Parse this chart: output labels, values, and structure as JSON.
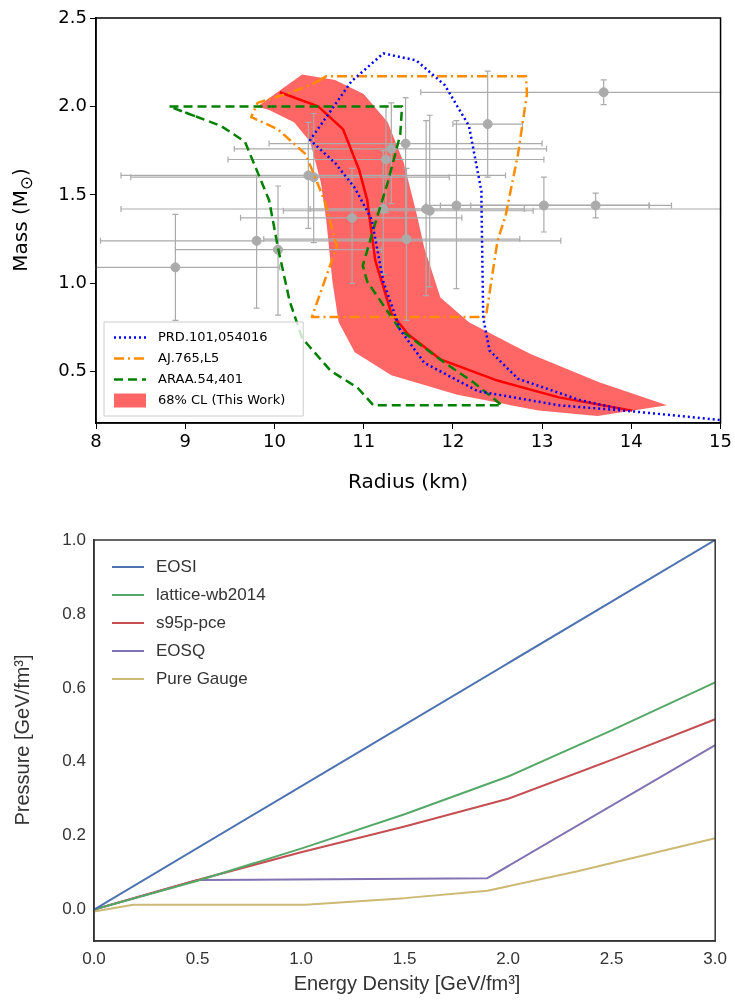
{
  "chart_data": [
    {
      "type": "line",
      "xlabel": "Radius (km)",
      "ylabel": "Mass (M$_{⊙}$)",
      "xlim": [
        8,
        15
      ],
      "ylim": [
        0.21,
        2.5
      ],
      "xticks": [
        8,
        9,
        10,
        11,
        12,
        13,
        14,
        15
      ],
      "yticks": [
        0.5,
        {
          "value": 1,
          "label": "1.0"
        },
        1.5,
        {
          "value": 2,
          "label": "2.0"
        },
        2.5
      ],
      "legend": "bottom left",
      "series": [
        {
          "type": "scatter",
          "color": "#ababab",
          "marker": "circle",
          "x": [
            8.89,
            9.8,
            10.04,
            10.38,
            10.44,
            10.87,
            11.22,
            11.25,
            11.31,
            11.47,
            11.48,
            11.7,
            11.74,
            12.04,
            12.39,
            13.02,
            13.6,
            13.69
          ],
          "values": [
            1.09,
            1.24,
            1.19,
            1.61,
            1.6,
            1.37,
            1.42,
            1.7,
            1.76,
            1.79,
            1.25,
            1.42,
            1.41,
            1.44,
            1.9,
            1.44,
            1.44,
            2.08
          ],
          "xerrors": [
            [
              8.0,
              10.06
            ],
            [
              8.05,
              13.21
            ],
            [
              8.89,
              11.2
            ],
            [
              8.28,
              12.59
            ],
            [
              8.39,
              11.96
            ],
            [
              9.62,
              12.1
            ],
            [
              8.28,
              15.0
            ],
            [
              9.48,
              13.02
            ],
            [
              9.55,
              13.05
            ],
            [
              9.94,
              13.0
            ],
            [
              9.88,
              12.75
            ],
            [
              10.4,
              12.8
            ],
            [
              10.1,
              12.9
            ],
            [
              11.86,
              14.45
            ],
            [
              12.0,
              12.78
            ],
            [
              11.7,
              14.2
            ],
            [
              12.2,
              14.2
            ],
            [
              11.64,
              15.0
            ]
          ],
          "errors": [
            [
              0.79,
              1.39
            ],
            [
              0.86,
              1.61
            ],
            [
              0.82,
              1.55
            ],
            [
              1.31,
              1.91
            ],
            [
              1.23,
              1.96
            ],
            [
              1.0,
              1.65
            ],
            [
              1.05,
              1.75
            ],
            [
              1.4,
              2.0
            ],
            [
              1.45,
              2.02
            ],
            [
              1.25,
              2.05
            ],
            [
              0.79,
              1.65
            ],
            [
              0.93,
              1.92
            ],
            [
              0.98,
              1.95
            ],
            [
              0.97,
              1.92
            ],
            [
              1.6,
              2.2
            ],
            [
              1.29,
              1.6
            ],
            [
              1.37,
              1.51
            ],
            [
              2.01,
              2.15
            ]
          ]
        },
        {
          "type": "line",
          "name": "PRD.101,054016",
          "color": "#0000ff",
          "line_style": "dotted",
          "x": [
            14.99,
            14.01,
            13.19,
            12.28,
            11.68,
            11.41,
            11.22,
            11.09,
            10.9,
            10.68,
            10.4,
            10.86,
            11.22,
            11.59,
            11.91,
            12.18,
            12.32,
            12.32,
            12.34,
            12.41,
            12.73,
            13.42,
            13.87
          ],
          "values": [
            0.227,
            0.276,
            0.31,
            0.39,
            0.55,
            0.736,
            1.01,
            1.36,
            1.54,
            1.68,
            1.81,
            2.14,
            2.3,
            2.26,
            2.12,
            1.89,
            1.52,
            1.47,
            0.805,
            0.62,
            0.46,
            0.34,
            0.29
          ]
        },
        {
          "type": "line",
          "name": "AJ.765,L5",
          "color": "#ff8c00",
          "line_style": "dashdot",
          "x": [
            10.49,
            10.58,
            12.82,
            12.83,
            12.73,
            12.59,
            12.5,
            12.37,
            10.42,
            10.7,
            10.56,
            10.35,
            10.04,
            9.74,
            9.81,
            10.13,
            10.4,
            10.52
          ],
          "values": [
            2.145,
            2.17,
            2.17,
            2.07,
            1.73,
            1.38,
            1.24,
            0.81,
            0.81,
            1.21,
            1.47,
            1.73,
            1.87,
            1.94,
            2.02,
            2.07,
            2.12,
            2.153
          ]
        },
        {
          "type": "line",
          "name": "ARAA.54,401",
          "color": "#008000",
          "line_style": "dashed",
          "x": [
            9.11,
            8.82,
            11.43,
            11.41,
            11.27,
            11.13,
            10.99,
            11.04,
            11.41,
            11.91,
            12.23,
            12.55,
            11.11,
            10.93,
            10.63,
            10.31,
            10.17,
            10.04,
            9.94,
            9.67,
            9.4,
            9.0
          ],
          "values": [
            1.945,
            2.0,
            2.0,
            1.84,
            1.57,
            1.34,
            1.1,
            1.01,
            0.736,
            0.55,
            0.44,
            0.31,
            0.31,
            0.41,
            0.505,
            0.69,
            0.9,
            1.2,
            1.47,
            1.8,
            1.89,
            1.966
          ]
        },
        {
          "type": "area",
          "name": "68% CL (This Work)",
          "color": "#ff6666",
          "x": [
            10.31,
            10.68,
            11.0,
            11.27,
            11.45,
            11.59,
            11.68,
            11.86,
            12.18,
            12.87,
            13.64,
            14.4,
            13.62,
            12.96,
            12.05,
            11.31,
            10.9,
            10.72,
            10.65,
            10.58,
            10.52,
            10.4,
            10.22,
            9.94,
            9.81,
            10.31
          ],
          "values": [
            2.18,
            2.15,
            2.07,
            1.91,
            1.68,
            1.4,
            1.2,
            0.92,
            0.78,
            0.6,
            0.44,
            0.31,
            0.25,
            0.28,
            0.37,
            0.48,
            0.61,
            0.78,
            1.01,
            1.36,
            1.57,
            1.8,
            1.91,
            1.98,
            2.0,
            2.18
          ]
        },
        {
          "type": "line",
          "color": "#ff0000",
          "x": [
            10.06,
            10.49,
            10.77,
            10.95,
            11.04,
            11.13,
            11.31,
            11.5,
            11.86,
            12.5,
            13.19,
            14.01
          ],
          "values": [
            2.08,
            2.0,
            1.87,
            1.64,
            1.47,
            1.13,
            0.83,
            0.71,
            0.57,
            0.45,
            0.355,
            0.28
          ]
        }
      ]
    },
    {
      "type": "line",
      "xlabel": "Energy Density [GeV/fm³]",
      "ylabel": "Pressure [GeV/fm³]",
      "xlim": [
        0,
        3
      ],
      "ylim": [
        -0.085,
        1.0
      ],
      "xticks": [
        {
          "value": 0,
          "label": "0.0"
        },
        0.5,
        {
          "value": 1,
          "label": "1.0"
        },
        1.5,
        {
          "value": 2,
          "label": "2.0"
        },
        2.5,
        {
          "value": 3,
          "label": "3.0"
        }
      ],
      "yticks": [
        {
          "value": 0,
          "label": "0.0"
        },
        0.2,
        0.4,
        0.6,
        0.8,
        {
          "value": 1,
          "label": "1.0"
        }
      ],
      "legend": "top left",
      "series": [
        {
          "name": "EOSI",
          "color": "#4c72b0",
          "x": [
            0,
            3
          ],
          "values": [
            0,
            1.0
          ]
        },
        {
          "name": "lattice-wb2014",
          "color": "#55a868",
          "x": [
            0,
            0.5,
            1.0,
            1.5,
            2.0,
            2.5,
            3.0
          ],
          "values": [
            0,
            0.078,
            0.165,
            0.258,
            0.36,
            0.485,
            0.615
          ]
        },
        {
          "name": "s95p-pce",
          "color": "#c44e52",
          "x": [
            0,
            0.5,
            1.0,
            1.5,
            2.0,
            2.5,
            3.0
          ],
          "values": [
            0,
            0.08,
            0.155,
            0.225,
            0.3,
            0.405,
            0.515
          ]
        },
        {
          "name": "EOSQ",
          "color": "#8172b2",
          "x": [
            0,
            0.5,
            1.9,
            3.0
          ],
          "values": [
            0,
            0.08,
            0.085,
            0.445
          ]
        },
        {
          "name": "Pure Gauge",
          "color": "#ccb974",
          "x": [
            0,
            0.19,
            1.02,
            1.5,
            1.9,
            2.33,
            3.0
          ],
          "values": [
            -0.005,
            0.013,
            0.013,
            0.031,
            0.051,
            0.103,
            0.193
          ]
        }
      ]
    }
  ]
}
